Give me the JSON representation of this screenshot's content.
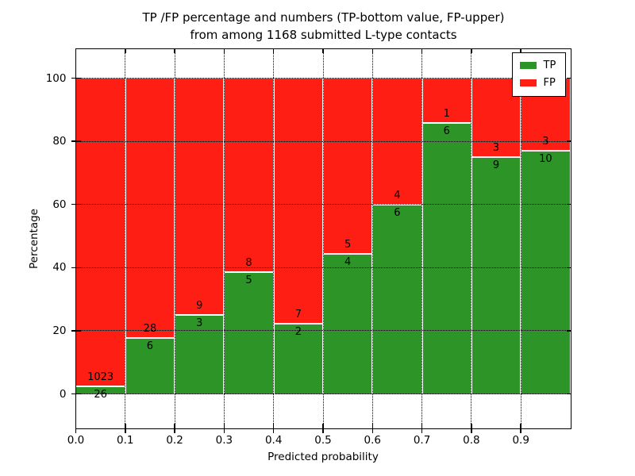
{
  "figure": {
    "title_line1": "TP /FP percentage and numbers (TP-bottom value, FP-upper)",
    "title_line2": "from among 1168 submitted L-type contacts"
  },
  "axes": {
    "xlabel": "Predicted probability",
    "ylabel": "Percentage",
    "x_tick_labels": [
      "0.0",
      "0.1",
      "0.2",
      "0.3",
      "0.4",
      "0.5",
      "0.6",
      "0.7",
      "0.8",
      "0.9"
    ],
    "y_tick_labels": [
      "0",
      "20",
      "40",
      "60",
      "80",
      "100"
    ]
  },
  "legend": {
    "items": [
      {
        "label": "TP",
        "color_key": "tp"
      },
      {
        "label": "FP",
        "color_key": "fp"
      }
    ]
  },
  "colors": {
    "tp": "#2d9428",
    "fp": "#ff1e14",
    "grid": "#000000",
    "background": "#ffffff",
    "text": "#000000"
  },
  "chart_data": {
    "type": "bar",
    "stacked": true,
    "normalized": "each bin scaled to percent of bin total",
    "title": "TP /FP percentage and numbers (TP-bottom value, FP-upper) from among 1168 submitted L-type contacts",
    "xlabel": "Predicted probability",
    "ylabel": "Percentage",
    "xlim": [
      0.0,
      1.0
    ],
    "ylim": [
      -11,
      109
    ],
    "xticks": [
      0.0,
      0.1,
      0.2,
      0.3,
      0.4,
      0.5,
      0.6,
      0.7,
      0.8,
      0.9
    ],
    "yticks": [
      0,
      20,
      40,
      60,
      80,
      100
    ],
    "grid": "dotted",
    "legend_position": "upper right",
    "total_submitted": 1168,
    "series_names": [
      "TP",
      "FP"
    ],
    "bins": [
      {
        "range": [
          0.0,
          0.1
        ],
        "tp": 26,
        "fp": 1023,
        "tp_percent": 2.5
      },
      {
        "range": [
          0.1,
          0.2
        ],
        "tp": 6,
        "fp": 28,
        "tp_percent": 17.6
      },
      {
        "range": [
          0.2,
          0.3
        ],
        "tp": 3,
        "fp": 9,
        "tp_percent": 25.0
      },
      {
        "range": [
          0.3,
          0.4
        ],
        "tp": 5,
        "fp": 8,
        "tp_percent": 38.5
      },
      {
        "range": [
          0.4,
          0.5
        ],
        "tp": 2,
        "fp": 7,
        "tp_percent": 22.2
      },
      {
        "range": [
          0.5,
          0.6
        ],
        "tp": 4,
        "fp": 5,
        "tp_percent": 44.4
      },
      {
        "range": [
          0.6,
          0.7
        ],
        "tp": 6,
        "fp": 4,
        "tp_percent": 60.0
      },
      {
        "range": [
          0.7,
          0.8
        ],
        "tp": 6,
        "fp": 1,
        "tp_percent": 85.7
      },
      {
        "range": [
          0.8,
          0.9
        ],
        "tp": 9,
        "fp": 3,
        "tp_percent": 75.0
      },
      {
        "range": [
          0.9,
          1.0
        ],
        "tp": 10,
        "fp": 3,
        "tp_percent": 76.9
      }
    ]
  }
}
